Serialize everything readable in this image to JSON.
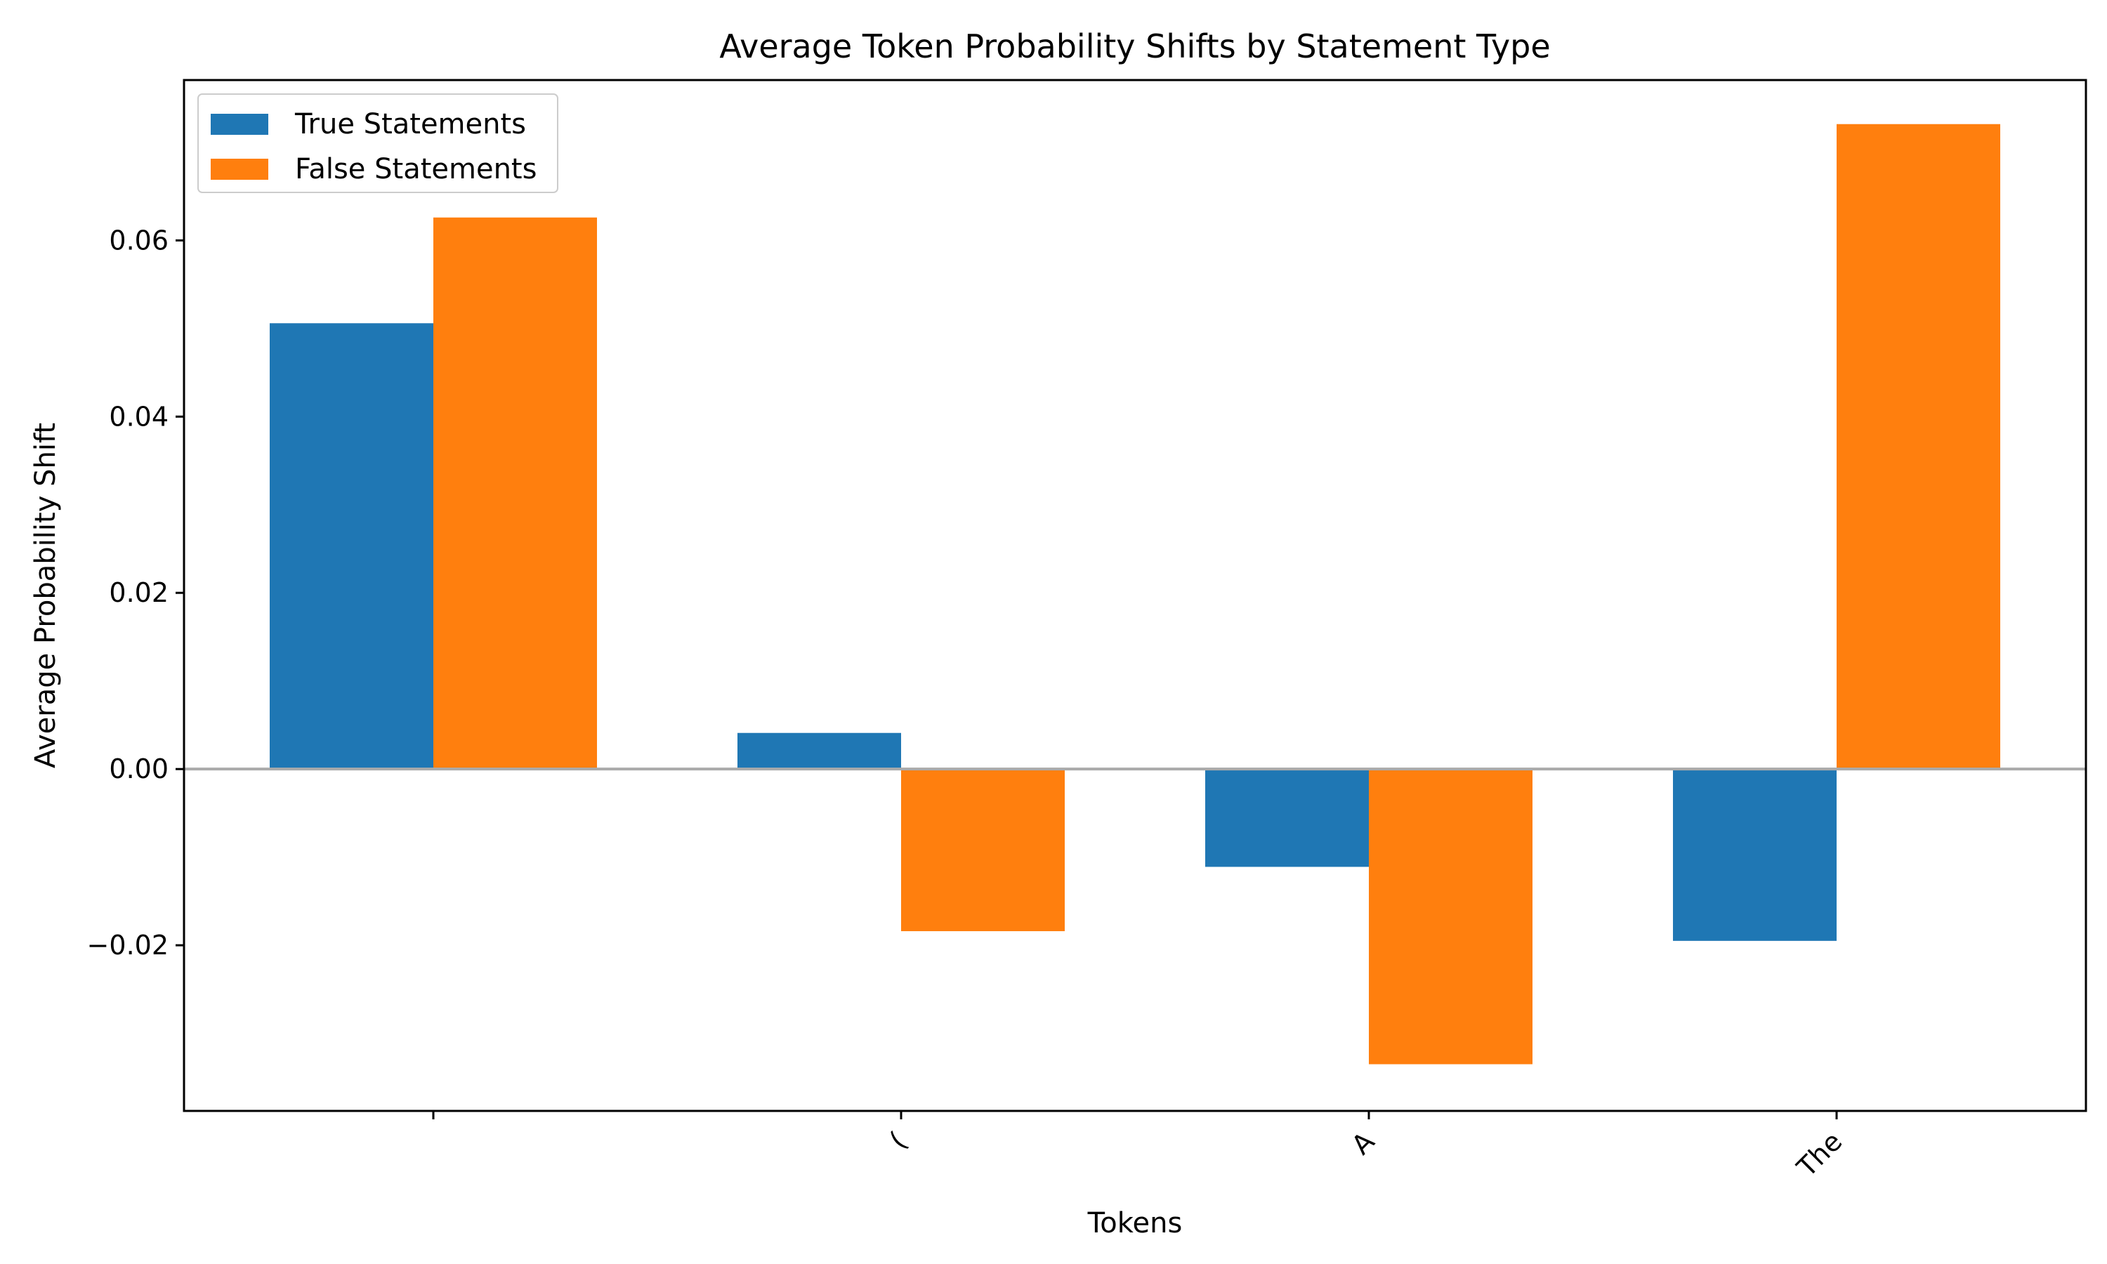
{
  "chart_data": {
    "type": "bar",
    "title": "Average Token Probability Shifts by Statement Type",
    "xlabel": "Tokens",
    "ylabel": "Average Probability Shift",
    "categories": [
      " ",
      "(",
      "A",
      "The"
    ],
    "series": [
      {
        "name": "True Statements",
        "values": [
          0.0506,
          0.0041,
          -0.0111,
          -0.0195
        ],
        "color": "#1f77b4"
      },
      {
        "name": "False Statements",
        "values": [
          0.0626,
          -0.0184,
          -0.0335,
          0.0732
        ],
        "color": "#ff7f0e"
      }
    ],
    "ylim": [
      -0.0388,
      0.0782
    ],
    "yticks": [
      -0.02,
      0.0,
      0.02,
      0.04,
      0.06
    ],
    "ytick_labels": [
      "−0.02",
      "0.00",
      "0.02",
      "0.04",
      "0.06"
    ],
    "xtick_rotation": 45,
    "zero_line_color": "#aaaaaa",
    "grid": false,
    "legend_position": "upper left"
  }
}
